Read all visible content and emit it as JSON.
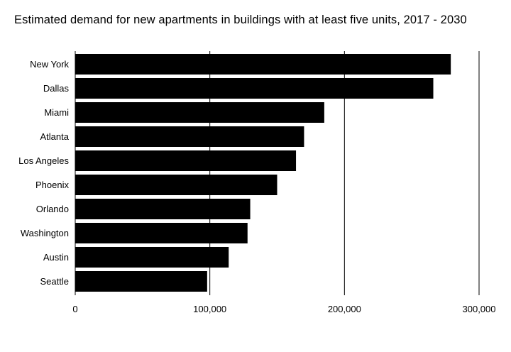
{
  "chart_data": {
    "type": "bar",
    "orientation": "horizontal",
    "title": "Estimated demand for new apartments in buildings with at least five units, 2017 - 2030",
    "categories": [
      "New York",
      "Dallas",
      "Miami",
      "Atlanta",
      "Los Angeles",
      "Phoenix",
      "Orlando",
      "Washington",
      "Austin",
      "Seattle"
    ],
    "values": [
      279000,
      266000,
      185000,
      170000,
      164000,
      150000,
      130000,
      128000,
      114000,
      98000
    ],
    "xlim": [
      0,
      300000
    ],
    "ticks": [
      0,
      100000,
      200000,
      300000
    ],
    "tick_labels": [
      "0",
      "100,000",
      "200,000",
      "300,000"
    ],
    "grid": true,
    "bar_color": "#000000"
  }
}
